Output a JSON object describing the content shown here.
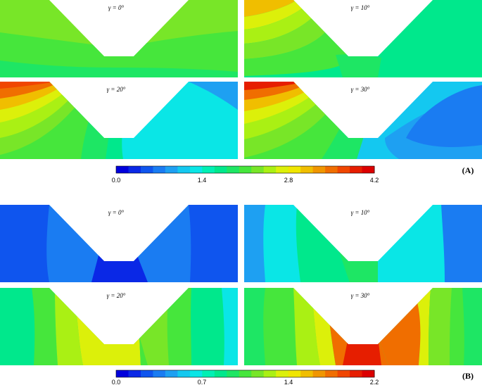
{
  "sections": [
    {
      "id": "A",
      "label": "(A)",
      "colorbar_ticks": [
        "0.0",
        "1.4",
        "2.8",
        "4.2"
      ],
      "colorbar_range": [
        0.0,
        4.2
      ],
      "panels": [
        {
          "title": "γ = 0°"
        },
        {
          "title": "γ = 10°"
        },
        {
          "title": "γ = 20°"
        },
        {
          "title": "γ = 30°"
        }
      ]
    },
    {
      "id": "B",
      "label": "(B)",
      "colorbar_ticks": [
        "0.0",
        "0.7",
        "1.4",
        "2.2"
      ],
      "colorbar_range": [
        0.0,
        2.2
      ],
      "panels": [
        {
          "title": "γ = 0°"
        },
        {
          "title": "γ = 10°"
        },
        {
          "title": "γ = 20°"
        },
        {
          "title": "γ = 30°"
        }
      ]
    }
  ],
  "colormap": [
    "#0000dc",
    "#0a28e6",
    "#0f55ee",
    "#1a7cf2",
    "#1ea0f2",
    "#14c8f0",
    "#0ae6e6",
    "#00f0b4",
    "#00e88c",
    "#1ee664",
    "#46e63c",
    "#78e628",
    "#aaf014",
    "#dcf00a",
    "#f0e600",
    "#f0be00",
    "#f09600",
    "#f06e00",
    "#f04600",
    "#e61e00",
    "#dc0000"
  ]
}
